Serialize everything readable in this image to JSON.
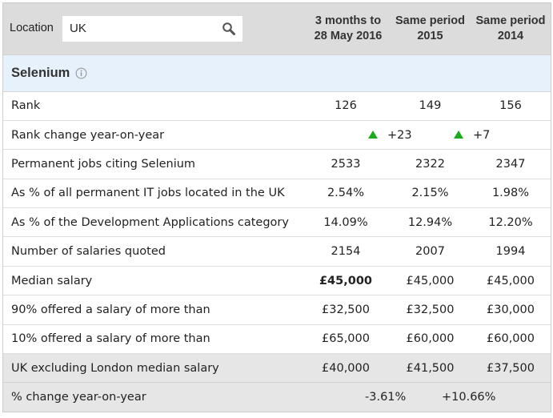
{
  "location": {
    "label": "Location",
    "value": "UK"
  },
  "columns": [
    {
      "line1": "3 months to",
      "line2": "28 May 2016"
    },
    {
      "line1": "Same period",
      "line2": "2015"
    },
    {
      "line1": "Same period",
      "line2": "2014"
    }
  ],
  "section": {
    "title": "Selenium"
  },
  "rows": [
    {
      "label": "Rank",
      "values": [
        "126",
        "149",
        "156"
      ]
    },
    {
      "label": "Rank change year-on-year",
      "changes": [
        "+23",
        "+7"
      ],
      "trend": [
        "up",
        "up"
      ]
    },
    {
      "label": "Permanent jobs citing Selenium",
      "values": [
        "2533",
        "2322",
        "2347"
      ]
    },
    {
      "label": "As % of all permanent IT jobs located in the UK",
      "values": [
        "2.54%",
        "2.15%",
        "1.98%"
      ]
    },
    {
      "label": "As % of the Development Applications category",
      "values": [
        "14.09%",
        "12.94%",
        "12.20%"
      ]
    },
    {
      "label": "Number of salaries quoted",
      "values": [
        "2154",
        "2007",
        "1994"
      ]
    },
    {
      "label": "Median salary",
      "values": [
        "£45,000",
        "£45,000",
        "£45,000"
      ]
    },
    {
      "label": "90% offered a salary of more than",
      "values": [
        "£32,500",
        "£32,500",
        "£30,000"
      ]
    },
    {
      "label": "10% offered a salary of more than",
      "values": [
        "£65,000",
        "£60,000",
        "£60,000"
      ]
    },
    {
      "label": "UK excluding London median salary",
      "values": [
        "£40,000",
        "£41,500",
        "£37,500"
      ]
    },
    {
      "label": "% change year-on-year",
      "changes": [
        "-3.61%",
        "+10.66%"
      ]
    }
  ],
  "colors": {
    "header_bg": "#dcdcdc",
    "section_bg": "#e6f1fb",
    "gray_row_bg": "#e6e6e6",
    "up_arrow": "#1aaa1a"
  },
  "icons": {
    "search": "search-icon",
    "info": "info-icon",
    "trend_up": "triangle-up-icon"
  }
}
